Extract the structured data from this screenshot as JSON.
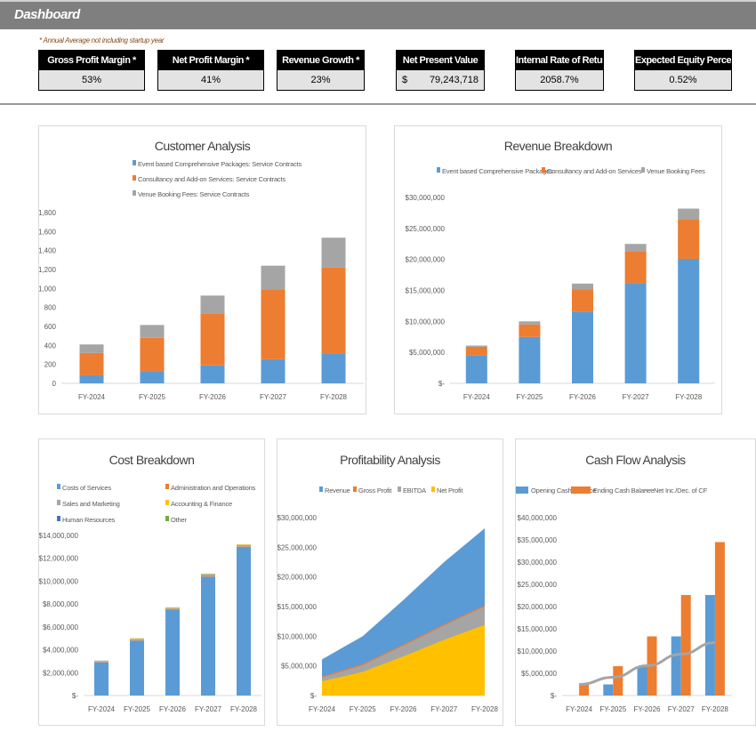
{
  "header": {
    "title": "Dashboard"
  },
  "note": "* Annual Average not including startup year",
  "kpis": [
    {
      "label": "Gross Profit Margin *",
      "value": "53%"
    },
    {
      "label": "Net Profit Margin *",
      "value": "41%"
    },
    {
      "label": "Revenue Growth *",
      "value": "23%"
    },
    {
      "label": "Net Present Value",
      "currency": "$",
      "value": "79,243,718"
    },
    {
      "label": "Internal Rate of Return",
      "value": "2058.7%"
    },
    {
      "label": "Expected Equity Percentage",
      "value": "0.52%"
    }
  ],
  "chart_data": [
    {
      "id": "customer",
      "type": "bar",
      "stacked": true,
      "title": "Customer Analysis",
      "categories": [
        "FY-2024",
        "FY-2025",
        "FY-2026",
        "FY-2027",
        "FY-2028"
      ],
      "ylim": [
        0,
        1800
      ],
      "yticks": [
        "0",
        "200",
        "400",
        "600",
        "800",
        "1,000",
        "1,200",
        "1,400",
        "1,600",
        "1,800"
      ],
      "legend": "top",
      "grid": false,
      "series": [
        {
          "name": "Event based Comprehensive Packages: Service Contracts",
          "color": "#5b9bd5",
          "values": [
            85,
            130,
            190,
            255,
            315
          ]
        },
        {
          "name": "Consultancy and Add-on Services: Service Contracts",
          "color": "#ed7d31",
          "values": [
            235,
            350,
            545,
            735,
            905
          ]
        },
        {
          "name": "Venue Booking Fees: Service Contracts",
          "color": "#a5a5a5",
          "values": [
            90,
            135,
            190,
            250,
            315
          ]
        }
      ]
    },
    {
      "id": "revenue",
      "type": "bar",
      "stacked": true,
      "title": "Revenue Breakdown",
      "categories": [
        "FY-2024",
        "FY-2025",
        "FY-2026",
        "FY-2027",
        "FY-2028"
      ],
      "ylim": [
        0,
        30000000
      ],
      "yticks": [
        "$-",
        "$5,000,000",
        "$10,000,000",
        "$15,000,000",
        "$20,000,000",
        "$25,000,000",
        "$30,000,000"
      ],
      "legend": "top",
      "grid": false,
      "series": [
        {
          "name": "Event based Comprehensive Packages",
          "color": "#5b9bd5",
          "values": [
            4500000,
            7500000,
            11600000,
            16200000,
            20100000
          ]
        },
        {
          "name": "Consultancy and Add-on Services",
          "color": "#ed7d31",
          "values": [
            1400000,
            2000000,
            3600000,
            5100000,
            6400000
          ]
        },
        {
          "name": "Venue Booking Fees",
          "color": "#a5a5a5",
          "values": [
            200000,
            500000,
            900000,
            1200000,
            1700000
          ]
        }
      ]
    },
    {
      "id": "cost",
      "type": "bar",
      "stacked": true,
      "title": "Cost Breakdown",
      "categories": [
        "FY-2024",
        "FY-2025",
        "FY-2026",
        "FY-2027",
        "FY-2028"
      ],
      "ylim": [
        0,
        14000000
      ],
      "yticks": [
        "$-",
        "$2,000,000",
        "$4,000,000",
        "$6,000,000",
        "$8,000,000",
        "$10,000,000",
        "$12,000,000",
        "$14,000,000"
      ],
      "legend": "top",
      "grid": false,
      "series": [
        {
          "name": "Costs of Services",
          "color": "#5b9bd5",
          "values": [
            2900000,
            4800000,
            7500000,
            10400000,
            13000000
          ]
        },
        {
          "name": "Administration and Operations",
          "color": "#ed7d31",
          "values": [
            40000,
            50000,
            60000,
            80000,
            50000
          ]
        },
        {
          "name": "Sales and Marketing",
          "color": "#a5a5a5",
          "values": [
            60000,
            80000,
            60000,
            120000,
            100000
          ]
        },
        {
          "name": "Accounting & Finance",
          "color": "#ffc000",
          "values": [
            30000,
            60000,
            70000,
            40000,
            40000
          ]
        },
        {
          "name": "Human Resources",
          "color": "#4472c4",
          "values": [
            10000,
            10000,
            10000,
            10000,
            10000
          ]
        },
        {
          "name": "Other",
          "color": "#70ad47",
          "values": [
            10000,
            10000,
            10000,
            10000,
            10000
          ]
        }
      ]
    },
    {
      "id": "profit",
      "type": "area",
      "title": "Profitability Analysis",
      "categories": [
        "FY-2024",
        "FY-2025",
        "FY-2026",
        "FY-2027",
        "FY-2028"
      ],
      "ylim": [
        0,
        30000000
      ],
      "yticks": [
        "$-",
        "$5,000,000",
        "$10,000,000",
        "$15,000,000",
        "$20,000,000",
        "$25,000,000",
        "$30,000,000"
      ],
      "legend": "top",
      "grid": false,
      "series": [
        {
          "name": "Revenue",
          "color": "#5b9bd5",
          "values": [
            6100000,
            10000000,
            16100000,
            22500000,
            28200000
          ]
        },
        {
          "name": "Gross Profit",
          "color": "#ed7d31",
          "values": [
            3200000,
            5300000,
            8600000,
            12000000,
            15200000
          ]
        },
        {
          "name": "EBITDA",
          "color": "#a5a5a5",
          "values": [
            3000000,
            5100000,
            8400000,
            11800000,
            15000000
          ]
        },
        {
          "name": "Net Profit",
          "color": "#ffc000",
          "values": [
            2400000,
            4000000,
            6600000,
            9400000,
            11900000
          ]
        }
      ]
    },
    {
      "id": "cash",
      "type": "bar",
      "stacked": false,
      "title": "Cash Flow Analysis",
      "categories": [
        "FY-2024",
        "FY-2025",
        "FY-2026",
        "FY-2027",
        "FY-2028"
      ],
      "ylim": [
        0,
        40000000
      ],
      "yticks": [
        "$-",
        "$5,000,000",
        "$10,000,000",
        "$15,000,000",
        "$20,000,000",
        "$25,000,000",
        "$30,000,000",
        "$35,000,000",
        "$40,000,000"
      ],
      "legend": "top",
      "grid": false,
      "series": [
        {
          "name": "Opening Cash Balance",
          "color": "#5b9bd5",
          "values": [
            0,
            2500000,
            6600000,
            13300000,
            22600000
          ]
        },
        {
          "name": "Ending Cash Balance",
          "color": "#ed7d31",
          "values": [
            2500000,
            6600000,
            13300000,
            22600000,
            34500000
          ]
        },
        {
          "name": "Net Inc./Dec. of CF",
          "color": "#a5a5a5",
          "kind": "line",
          "values": [
            2500000,
            4100000,
            6700000,
            9300000,
            11900000
          ]
        }
      ]
    }
  ]
}
